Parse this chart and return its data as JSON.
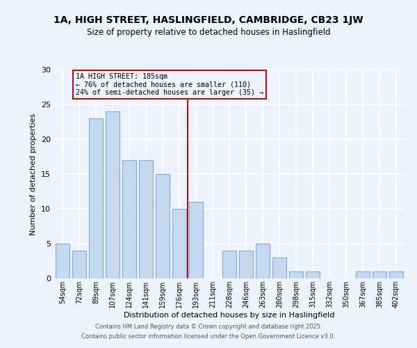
{
  "title": "1A, HIGH STREET, HASLINGFIELD, CAMBRIDGE, CB23 1JW",
  "subtitle": "Size of property relative to detached houses in Haslingfield",
  "xlabel": "Distribution of detached houses by size in Haslingfield",
  "ylabel": "Number of detached properties",
  "bar_labels": [
    "54sqm",
    "72sqm",
    "89sqm",
    "107sqm",
    "124sqm",
    "141sqm",
    "159sqm",
    "176sqm",
    "193sqm",
    "211sqm",
    "228sqm",
    "246sqm",
    "263sqm",
    "280sqm",
    "298sqm",
    "315sqm",
    "332sqm",
    "350sqm",
    "367sqm",
    "385sqm",
    "402sqm"
  ],
  "bar_values": [
    5,
    4,
    23,
    24,
    17,
    17,
    15,
    10,
    11,
    0,
    4,
    4,
    5,
    3,
    1,
    1,
    0,
    0,
    1,
    1,
    1
  ],
  "bar_color": "#c5d8f0",
  "bar_edge_color": "#7aadd4",
  "vline_x": 7.5,
  "vline_color": "#aa1111",
  "annotation_title": "1A HIGH STREET: 185sqm",
  "annotation_line1": "← 76% of detached houses are smaller (110)",
  "annotation_line2": "24% of semi-detached houses are larger (35) →",
  "annotation_box_color": "#aa1111",
  "ylim": [
    0,
    30
  ],
  "yticks": [
    0,
    5,
    10,
    15,
    20,
    25,
    30
  ],
  "bg_color": "#eef2fc",
  "grid_color": "#ffffff",
  "footer1": "Contains HM Land Registry data © Crown copyright and database right 2025.",
  "footer2": "Contains public sector information licensed under the Open Government Licence v3.0."
}
